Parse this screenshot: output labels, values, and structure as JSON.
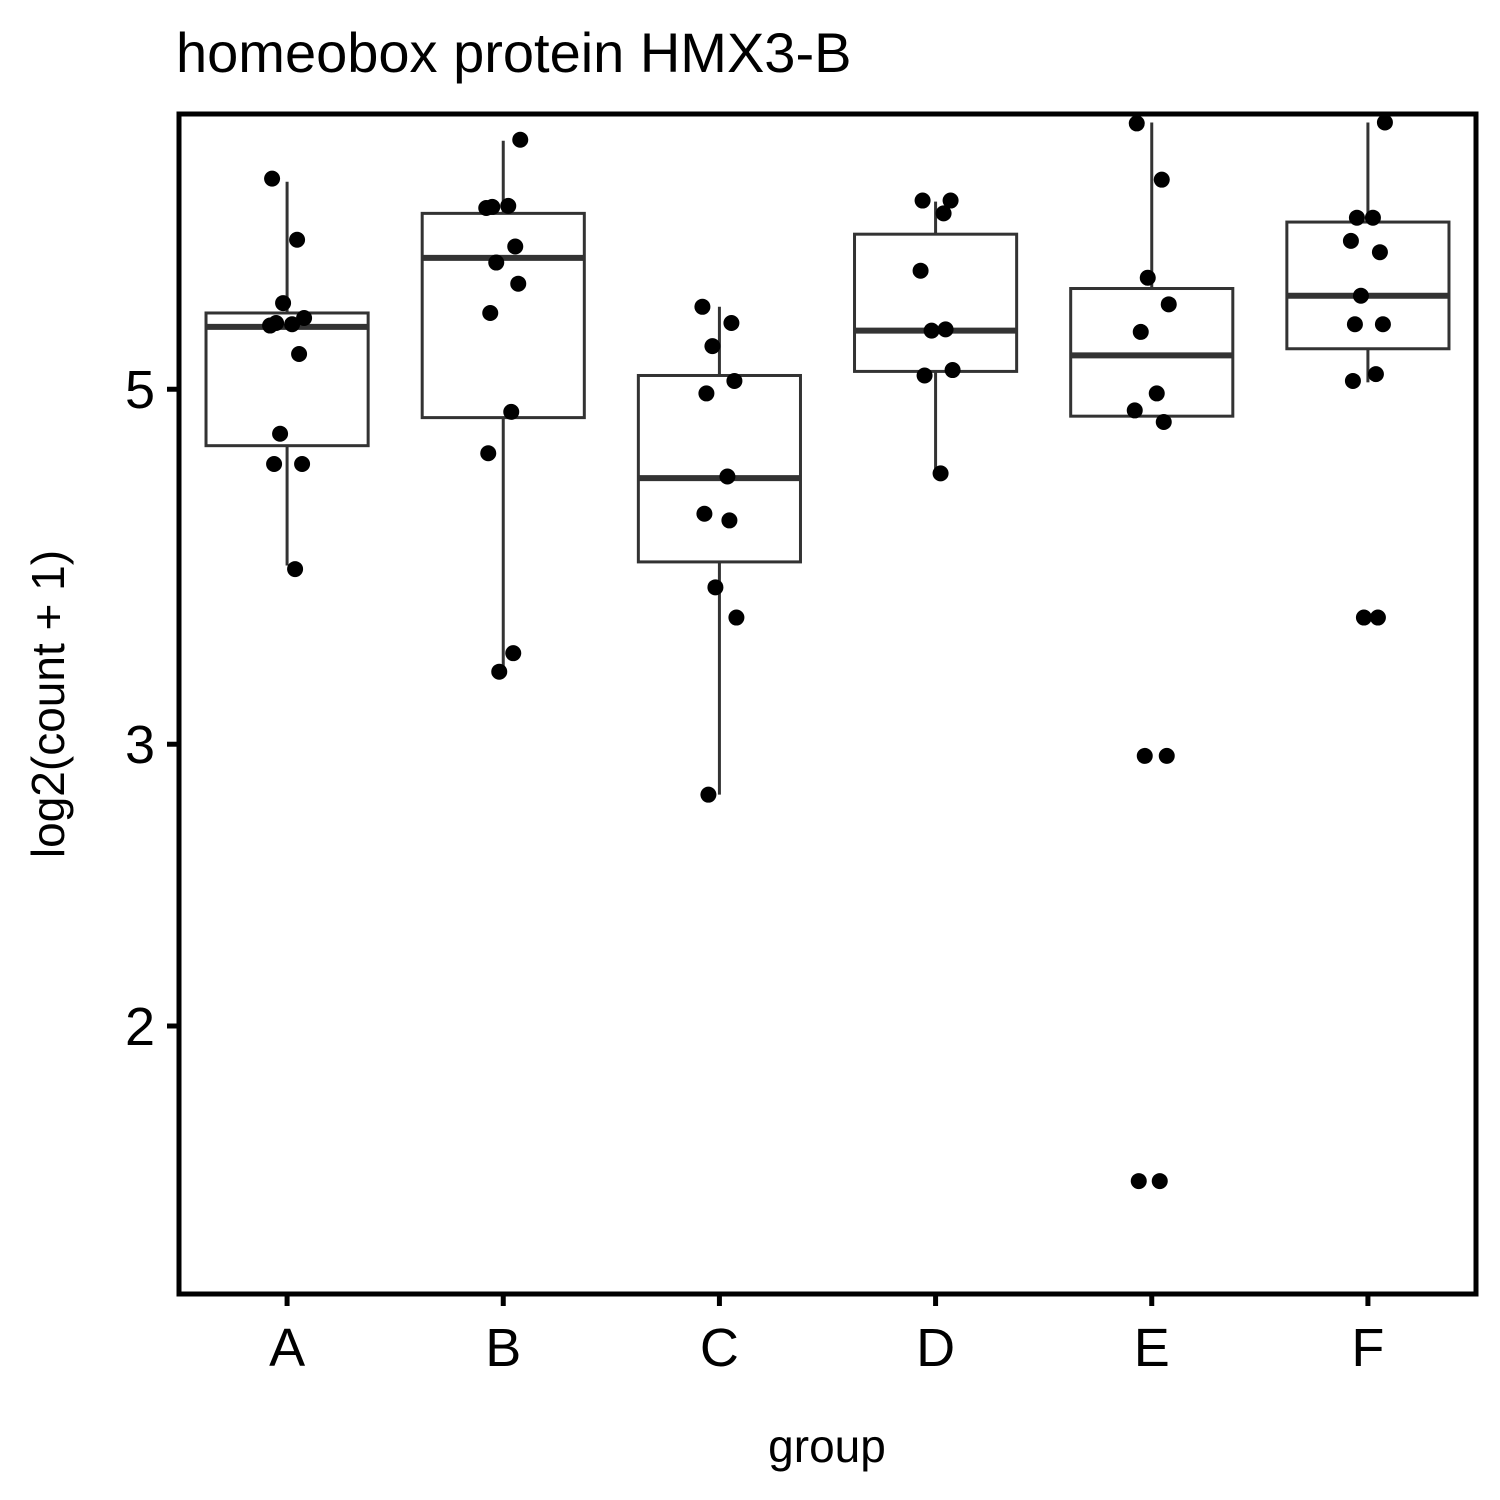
{
  "chart_data": {
    "type": "box",
    "title": "homeobox protein HMX3-B",
    "xlabel": "group",
    "ylabel": "log2(count + 1)",
    "y_scale": "log",
    "ylim": [
      1.36,
      7.43
    ],
    "y_ticks": [
      2,
      3,
      5
    ],
    "y_tick_labels": [
      "2",
      "3",
      "5"
    ],
    "categories": [
      "A",
      "B",
      "C",
      "D",
      "E",
      "F"
    ],
    "grid": false,
    "legend": "none",
    "box_color": "#333333",
    "point_color": "#000000",
    "groups": [
      {
        "name": "A",
        "box": {
          "lower_whisker": 3.88,
          "q1": 4.61,
          "median": 5.47,
          "q3": 5.58,
          "upper_whisker": 6.74
        },
        "points": [
          6.77,
          6.2,
          5.66,
          5.54,
          5.5,
          5.49,
          5.48,
          5.26,
          4.69,
          4.49,
          4.49,
          3.86
        ]
      },
      {
        "name": "B",
        "box": {
          "lower_whisker": 3.34,
          "q1": 4.8,
          "median": 6.04,
          "q3": 6.44,
          "upper_whisker": 7.15
        },
        "points": [
          7.16,
          6.5,
          6.51,
          6.49,
          6.14,
          6.0,
          5.82,
          5.58,
          4.84,
          4.56,
          3.42,
          3.33
        ]
      },
      {
        "name": "C",
        "box": {
          "lower_whisker": 2.79,
          "q1": 3.9,
          "median": 4.4,
          "q3": 5.1,
          "upper_whisker": 5.63
        },
        "points": [
          5.63,
          5.5,
          5.32,
          5.06,
          4.97,
          4.41,
          4.18,
          4.14,
          3.76,
          3.6,
          2.79
        ]
      },
      {
        "name": "D",
        "box": {
          "lower_whisker": 4.46,
          "q1": 5.13,
          "median": 5.44,
          "q3": 6.25,
          "upper_whisker": 6.55
        },
        "points": [
          6.56,
          6.56,
          6.44,
          5.93,
          5.45,
          5.44,
          5.14,
          5.1,
          4.43
        ]
      },
      {
        "name": "E",
        "box": {
          "lower_whisker": 4.81,
          "q1": 4.81,
          "median": 5.25,
          "q3": 5.78,
          "upper_whisker": 7.34
        },
        "points": [
          7.33,
          6.76,
          5.87,
          5.65,
          5.43,
          4.97,
          4.85,
          4.77,
          2.95,
          2.95,
          1.6,
          1.6
        ]
      },
      {
        "name": "F",
        "box": {
          "lower_whisker": 5.05,
          "q1": 5.3,
          "median": 5.72,
          "q3": 6.36,
          "upper_whisker": 7.34
        },
        "points": [
          7.34,
          6.4,
          6.4,
          6.19,
          6.09,
          5.72,
          5.49,
          5.49,
          5.11,
          5.06,
          3.6,
          3.6
        ]
      }
    ]
  }
}
